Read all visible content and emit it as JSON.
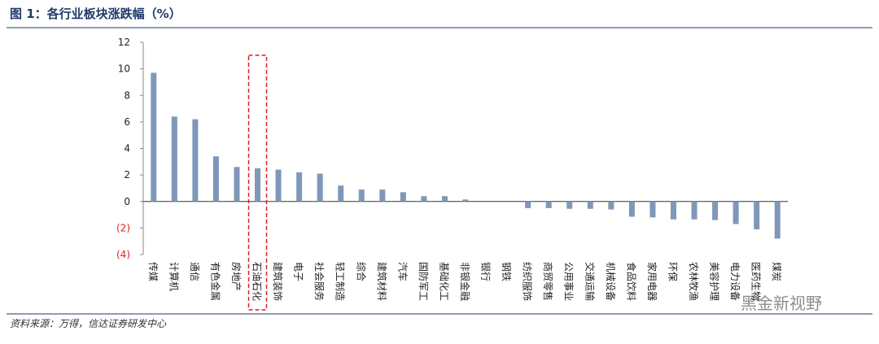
{
  "chart_data": {
    "type": "bar",
    "title": "图 1：各行业板块涨跌幅（%）",
    "source": "资料来源：万得，信达证券研发中心",
    "watermark": "黑金新视野",
    "categories": [
      "传媒",
      "计算机",
      "通信",
      "有色金属",
      "房地产",
      "石油石化",
      "建筑装饰",
      "电子",
      "社会服务",
      "轻工制造",
      "综合",
      "建筑材料",
      "汽车",
      "国防军工",
      "基础化工",
      "非银金融",
      "银行",
      "钢铁",
      "纺织服饰",
      "商贸零售",
      "公用事业",
      "交通运输",
      "机械设备",
      "食品饮料",
      "家用电器",
      "环保",
      "农林牧渔",
      "美容护理",
      "电力设备",
      "医药生物",
      "煤炭"
    ],
    "values": [
      9.7,
      6.4,
      6.2,
      3.4,
      2.6,
      2.5,
      2.4,
      2.2,
      2.1,
      1.2,
      0.9,
      0.9,
      0.7,
      0.4,
      0.4,
      0.15,
      0,
      0,
      -0.5,
      -0.5,
      -0.55,
      -0.55,
      -0.6,
      -1.15,
      -1.2,
      -1.35,
      -1.35,
      -1.4,
      -1.7,
      -2.1,
      -2.8
    ],
    "color": "#7f97b8",
    "highlight_index": 5,
    "ylim": [
      -4,
      12
    ],
    "yticks": [
      {
        "value": -4,
        "label": "(4)"
      },
      {
        "value": -2,
        "label": "(2)"
      },
      0,
      2,
      4,
      6,
      8,
      10,
      12
    ],
    "negative_tick_color": "#e02020"
  }
}
